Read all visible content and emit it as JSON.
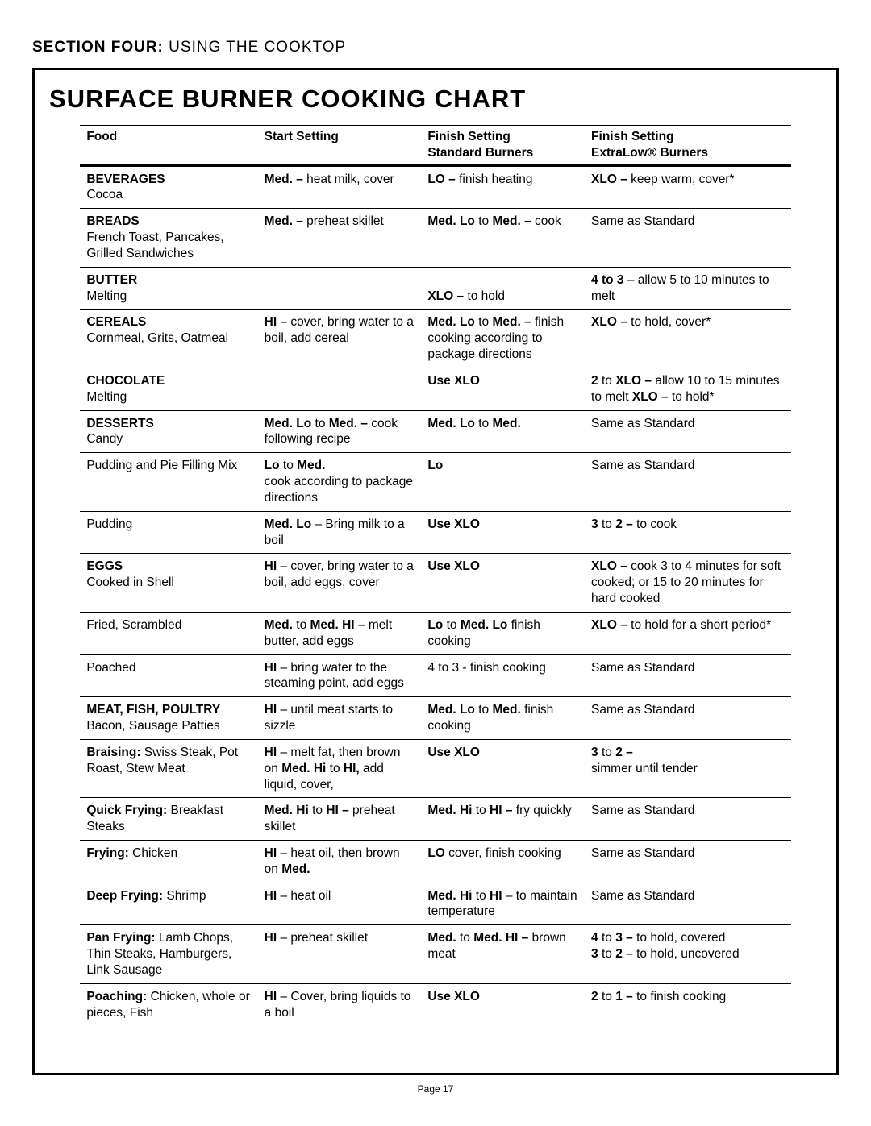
{
  "section_header_bold": "SECTION FOUR:",
  "section_header_rest": " USING THE COOKTOP",
  "title": "SURFACE BURNER COOKING CHART",
  "page_label": "Page 17",
  "headers": {
    "c1": "Food",
    "c2": "Start Setting",
    "c3a": "Finish Setting",
    "c3b": "Standard Burners",
    "c4a": "Finish Setting",
    "c4b": "ExtraLow® Burners"
  },
  "rows": [
    {
      "food": "<span class='b'>BEVERAGES</span><br>Cocoa",
      "start": "<span class='b'>Med. –</span> heat milk, cover",
      "finish_std": "<span class='b'>LO –</span> finish heating",
      "finish_xlo": "<span class='b'>XLO –</span> keep warm, cover*"
    },
    {
      "food": "<span class='b'>BREADS</span><br>French Toast, Pancakes, Grilled Sandwiches",
      "start": "<span class='b'>Med. –</span> preheat skillet",
      "finish_std": "<span class='b'>Med. Lo</span> to <span class='b'>Med. –</span> cook",
      "finish_xlo": "Same as Standard"
    },
    {
      "food": "<span class='b'>BUTTER</span><br>Melting",
      "start": "",
      "finish_std": "<br><span class='b'>XLO –</span> to hold",
      "finish_xlo": "<span class='b'>4 to 3</span> – allow 5 to 10 minutes to melt"
    },
    {
      "food": "<span class='b'>CEREALS</span><br>Cornmeal, Grits, Oatmeal",
      "start": "<span class='b'>HI –</span> cover, bring water to a boil, add cereal",
      "finish_std": "<span class='b'>Med. Lo</span> to <span class='b'>Med. –</span> finish cooking according to package directions",
      "finish_xlo": "<span class='b'>XLO –</span> to hold, cover*"
    },
    {
      "food": "<span class='b'>CHOCOLATE</span><br>Melting",
      "start": "",
      "finish_std": "<span class='b'>Use XLO</span>",
      "finish_xlo": "<span class='b'>2</span> to <span class='b'>XLO –</span> allow 10 to 15 minutes to melt <span class='b'>XLO –</span> to hold*"
    },
    {
      "food": "<span class='b'>DESSERTS</span><br>Candy",
      "start": "<span class='b'>Med. Lo</span> to <span class='b'>Med. –</span> cook following recipe",
      "finish_std": "<span class='b'>Med. Lo</span> to <span class='b'>Med.</span>",
      "finish_xlo": "Same as Standard"
    },
    {
      "sub": true,
      "food": "Pudding and Pie Filling Mix",
      "start": "<span class='b'>Lo</span> to <span class='b'>Med.</span><br>cook according to package directions",
      "finish_std": "<span class='b'>Lo</span>",
      "finish_xlo": "Same as Standard"
    },
    {
      "sub": true,
      "food": "Pudding",
      "start": "<span class='b'>Med. Lo</span> – Bring milk to a boil",
      "finish_std": "<span class='b'>Use XLO</span>",
      "finish_xlo": "<span class='b'>3</span> to <span class='b'>2 –</span> to cook"
    },
    {
      "food": "<span class='b'>EGGS</span><br>Cooked in Shell",
      "start": "<span class='b'>HI</span> – cover, bring water to a boil, add eggs, cover",
      "finish_std": "<span class='b'>Use XLO</span>",
      "finish_xlo": "<span class='b'>XLO –</span> cook 3 to 4 minutes for soft cooked; or 15 to 20 minutes for hard cooked"
    },
    {
      "sub": true,
      "food": "Fried, Scrambled",
      "start": "<span class='b'>Med.</span> to <span class='b'>Med. HI –</span> melt butter, add eggs",
      "finish_std": "<span class='b'>Lo</span> to <span class='b'>Med. Lo</span> finish cooking",
      "finish_xlo": "<span class='b'>XLO –</span> to hold for a short period*"
    },
    {
      "sub": true,
      "food": "Poached",
      "start": "<span class='b'>HI</span> – bring water to the steaming point, add eggs",
      "finish_std": "4 to 3 - finish cooking",
      "finish_xlo": "Same as Standard"
    },
    {
      "food": "<span class='b'>MEAT, FISH, POULTRY</span><br>Bacon, Sausage Patties",
      "start": "<span class='b'>HI</span> – until meat starts to sizzle",
      "finish_std": "<span class='b'>Med. Lo</span> to <span class='b'>Med.</span> finish cooking",
      "finish_xlo": "Same as Standard"
    },
    {
      "sub": true,
      "food": "<span class='b'>Braising:</span> Swiss Steak, Pot Roast, Stew Meat",
      "start": "<span class='b'>HI</span> – melt fat, then brown on <span class='b'>Med. Hi</span> to <span class='b'>HI,</span> add liquid, cover,",
      "finish_std": "<span class='b'>Use XLO</span>",
      "finish_xlo": "<span class='b'>3</span> to <span class='b'>2 –</span><br>simmer until tender"
    },
    {
      "sub": true,
      "food": "<span class='b'>Quick Frying:</span> Breakfast Steaks",
      "start": "<span class='b'>Med. Hi</span> to <span class='b'>HI –</span> preheat skillet",
      "finish_std": "<span class='b'>Med. Hi</span> to <span class='b'>HI –</span> fry quickly",
      "finish_xlo": "Same as Standard"
    },
    {
      "sub": true,
      "food": "<span class='b'>Frying:</span> Chicken",
      "start": "<span class='b'>HI</span> – heat oil, then brown on <span class='b'>Med.</span>",
      "finish_std": "<span class='b'>LO</span> cover, finish cooking",
      "finish_xlo": "Same as Standard"
    },
    {
      "sub": true,
      "food": "<span class='b'>Deep Frying:</span> Shrimp",
      "start": "<span class='b'>HI</span> – heat oil",
      "finish_std": "<span class='b'>Med. Hi</span> to <span class='b'>HI</span> – to maintain temperature",
      "finish_xlo": "Same as Standard"
    },
    {
      "sub": true,
      "food": "<span class='b'>Pan Frying:</span> Lamb Chops, Thin Steaks, Hamburgers, Link Sausage",
      "start": "<span class='b'>HI</span> – preheat skillet",
      "finish_std": "<span class='b'>Med.</span> to <span class='b'>Med. HI –</span> brown meat",
      "finish_xlo": "<span class='b'>4</span> to <span class='b'>3 –</span> to hold, covered<br><span class='b'>3</span> to <span class='b'>2 –</span> to hold, uncovered"
    },
    {
      "sub": true,
      "food": "<span class='b'>Poaching:</span> Chicken, whole or pieces, Fish",
      "start": "<span class='b'>HI</span> – Cover, bring liquids to a boil",
      "finish_std": "<span class='b'>Use XLO</span>",
      "finish_xlo": "<span class='b'>2</span> to <span class='b'>1 –</span> to finish cooking"
    }
  ]
}
